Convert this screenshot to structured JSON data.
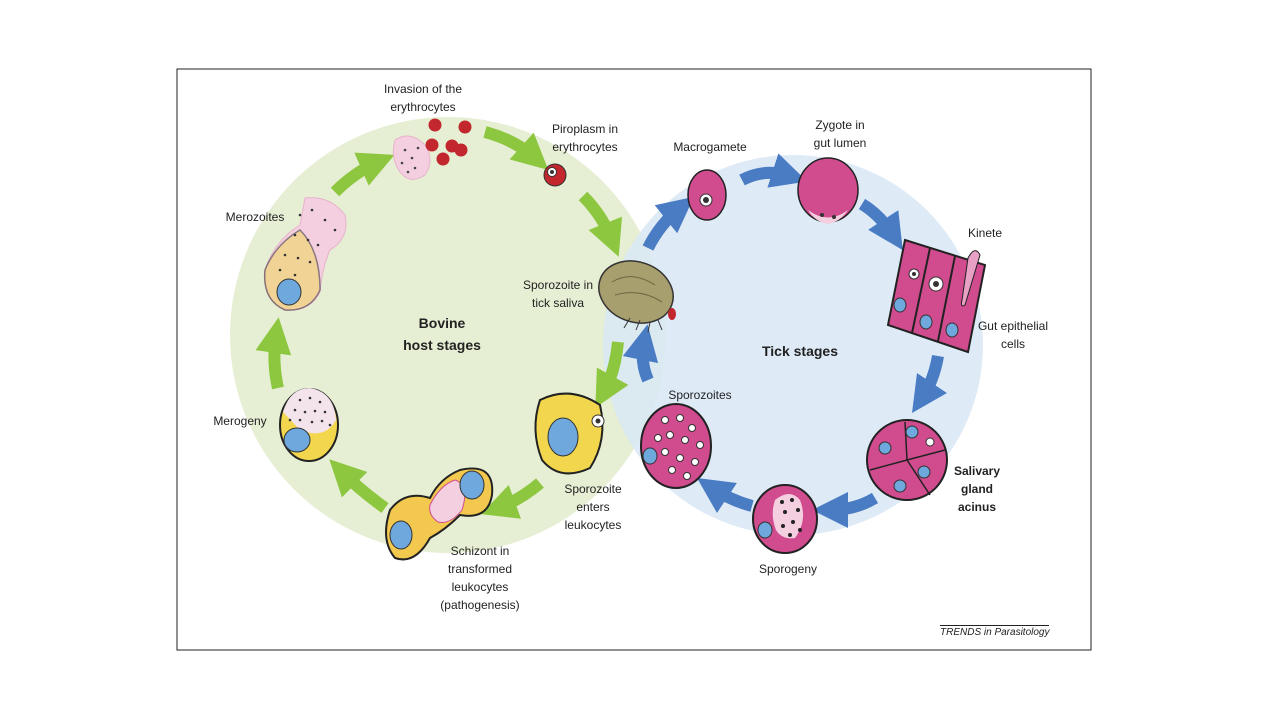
{
  "figure": {
    "credit": "TRENDS in Parasitology",
    "host_cycle": {
      "center_label": "Bovine\nhost stages",
      "color": "#e6efd4",
      "arrow_color": "#8dc63f"
    },
    "tick_cycle": {
      "center_label": "Tick stages",
      "color": "#d8e8f6",
      "arrow_color": "#4a7cc4"
    },
    "stage_labels": {
      "invasion": "Invasion of the\nerythrocytes",
      "piroplasm": "Piroplasm in\nerythrocytes",
      "sporozoite_saliva": "Sporozoite in\ntick saliva",
      "sporozoite_enters": "Sporozoite\nenters\nleukocytes",
      "schizont": "Schizont in\ntransformed\nleukocytes\n(pathogenesis)",
      "merogeny": "Merogeny",
      "merozoites": "Merozoites",
      "macrogamete": "Macrogamete",
      "zygote": "Zygote in\ngut lumen",
      "kinete": "Kinete",
      "gut_epithelial": "Gut epithelial\ncells",
      "salivary_gland": "Salivary\ngland\nacinus",
      "sporogeny": "Sporogeny",
      "sporozoites": "Sporozoites"
    },
    "colors": {
      "erythrocyte": "#c1272d",
      "tick_cell": "#d14b8f",
      "leukocyte": "#f2d74e",
      "nucleus": "#6fa8dc",
      "tick_body": "#a89f6e"
    }
  }
}
